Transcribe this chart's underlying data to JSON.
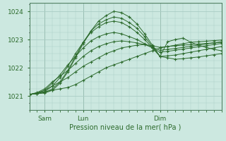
{
  "title": "Pression niveau de la mer( hPa )",
  "ylabel_ticks": [
    1021,
    1022,
    1023,
    1024
  ],
  "xlim": [
    0,
    100
  ],
  "ylim": [
    1020.5,
    1024.3
  ],
  "bg_color": "#cce8e0",
  "grid_color": "#aaccc4",
  "line_color": "#2d6b2d",
  "marker_color": "#2d6b2d",
  "xtick_positions": [
    8,
    28,
    68
  ],
  "xtick_labels": [
    "Sam",
    "Lun",
    "Dim"
  ],
  "vline_positions": [
    8,
    28,
    68
  ],
  "series": [
    {
      "x": [
        0,
        4,
        8,
        12,
        16,
        20,
        24,
        28,
        32,
        36,
        40,
        44,
        48,
        52,
        56,
        60,
        64,
        68,
        72,
        76,
        80,
        84,
        88,
        92,
        96,
        100
      ],
      "y": [
        1021.05,
        1021.1,
        1021.15,
        1021.2,
        1021.25,
        1021.3,
        1021.4,
        1021.55,
        1021.7,
        1021.85,
        1022.0,
        1022.1,
        1022.2,
        1022.3,
        1022.4,
        1022.5,
        1022.6,
        1022.7,
        1022.75,
        1022.8,
        1022.85,
        1022.9,
        1022.92,
        1022.94,
        1022.96,
        1022.98
      ]
    },
    {
      "x": [
        0,
        4,
        8,
        12,
        16,
        20,
        24,
        28,
        32,
        36,
        40,
        44,
        48,
        52,
        56,
        60,
        64,
        68,
        72,
        76,
        80,
        84,
        88,
        92,
        96,
        100
      ],
      "y": [
        1021.05,
        1021.1,
        1021.2,
        1021.35,
        1021.5,
        1021.65,
        1021.85,
        1022.05,
        1022.2,
        1022.35,
        1022.5,
        1022.6,
        1022.7,
        1022.75,
        1022.8,
        1022.82,
        1022.78,
        1022.72,
        1022.75,
        1022.78,
        1022.8,
        1022.82,
        1022.84,
        1022.86,
        1022.88,
        1022.9
      ]
    },
    {
      "x": [
        0,
        4,
        8,
        12,
        16,
        20,
        24,
        28,
        32,
        36,
        40,
        44,
        48,
        52,
        56,
        60,
        64,
        68,
        72,
        76,
        80,
        84,
        88,
        92,
        96,
        100
      ],
      "y": [
        1021.05,
        1021.12,
        1021.25,
        1021.5,
        1021.7,
        1021.9,
        1022.15,
        1022.4,
        1022.6,
        1022.75,
        1022.85,
        1022.92,
        1022.95,
        1022.92,
        1022.88,
        1022.82,
        1022.72,
        1022.62,
        1022.65,
        1022.68,
        1022.72,
        1022.76,
        1022.8,
        1022.84,
        1022.88,
        1022.92
      ]
    },
    {
      "x": [
        0,
        4,
        8,
        12,
        16,
        20,
        24,
        28,
        32,
        36,
        40,
        44,
        48,
        52,
        56,
        60,
        64,
        68,
        72,
        76,
        80,
        84,
        88,
        92,
        96,
        100
      ],
      "y": [
        1021.05,
        1021.1,
        1021.2,
        1021.45,
        1021.75,
        1022.1,
        1022.4,
        1022.7,
        1022.95,
        1023.1,
        1023.2,
        1023.25,
        1023.2,
        1023.1,
        1023.0,
        1022.85,
        1022.7,
        1022.55,
        1022.58,
        1022.62,
        1022.66,
        1022.7,
        1022.74,
        1022.78,
        1022.82,
        1022.86
      ]
    },
    {
      "x": [
        0,
        4,
        8,
        12,
        16,
        20,
        24,
        28,
        32,
        36,
        40,
        44,
        48,
        52,
        56,
        60,
        64,
        68,
        72,
        76,
        80,
        84,
        88,
        92,
        96,
        100
      ],
      "y": [
        1021.05,
        1021.08,
        1021.15,
        1021.35,
        1021.65,
        1022.05,
        1022.5,
        1022.9,
        1023.25,
        1023.45,
        1023.6,
        1023.65,
        1023.6,
        1023.45,
        1023.25,
        1023.0,
        1022.7,
        1022.4,
        1022.42,
        1022.45,
        1022.5,
        1022.55,
        1022.6,
        1022.65,
        1022.7,
        1022.75
      ]
    },
    {
      "x": [
        0,
        4,
        8,
        12,
        16,
        20,
        24,
        28,
        32,
        36,
        40,
        44,
        48,
        52,
        56,
        60,
        64,
        68,
        72,
        76,
        80,
        84,
        88,
        92,
        96,
        100
      ],
      "y": [
        1021.05,
        1021.08,
        1021.12,
        1021.25,
        1021.5,
        1021.9,
        1022.4,
        1022.9,
        1023.3,
        1023.55,
        1023.7,
        1023.8,
        1023.75,
        1023.6,
        1023.4,
        1023.1,
        1022.75,
        1022.4,
        1022.92,
        1023.0,
        1023.05,
        1022.9,
        1022.8,
        1022.72,
        1022.65,
        1022.6
      ]
    },
    {
      "x": [
        0,
        4,
        8,
        12,
        16,
        20,
        24,
        28,
        32,
        36,
        40,
        44,
        48,
        52,
        56,
        60,
        64,
        68,
        72,
        76,
        80,
        84,
        88,
        92,
        96,
        100
      ],
      "y": [
        1021.05,
        1021.08,
        1021.1,
        1021.2,
        1021.45,
        1021.85,
        1022.35,
        1022.85,
        1023.3,
        1023.65,
        1023.85,
        1024.0,
        1023.95,
        1023.8,
        1023.55,
        1023.2,
        1022.8,
        1022.4,
        1022.35,
        1022.3,
        1022.32,
        1022.35,
        1022.38,
        1022.42,
        1022.46,
        1022.5
      ]
    }
  ]
}
